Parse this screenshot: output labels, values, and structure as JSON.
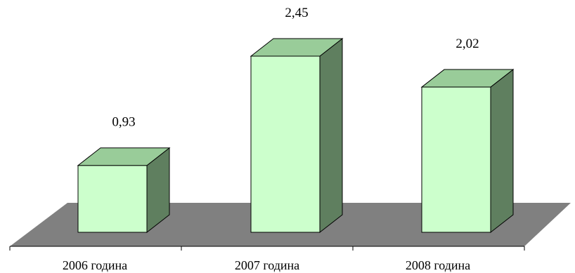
{
  "chart_data": {
    "type": "bar",
    "style": "3d-column",
    "categories": [
      "2006 година",
      "2007 година",
      "2008 година"
    ],
    "values": [
      0.93,
      2.45,
      2.02
    ],
    "value_labels": [
      "0,93",
      "2,45",
      "2,02"
    ],
    "title": "",
    "xlabel": "",
    "ylabel": "",
    "ylim": [
      0,
      2.45
    ],
    "grid": false,
    "legend": "none"
  },
  "colors": {
    "bar_front": "#ccffcc",
    "bar_top": "#99cc99",
    "bar_side": "#5f7f5f",
    "floor": "#808080",
    "outline": "#000000"
  }
}
